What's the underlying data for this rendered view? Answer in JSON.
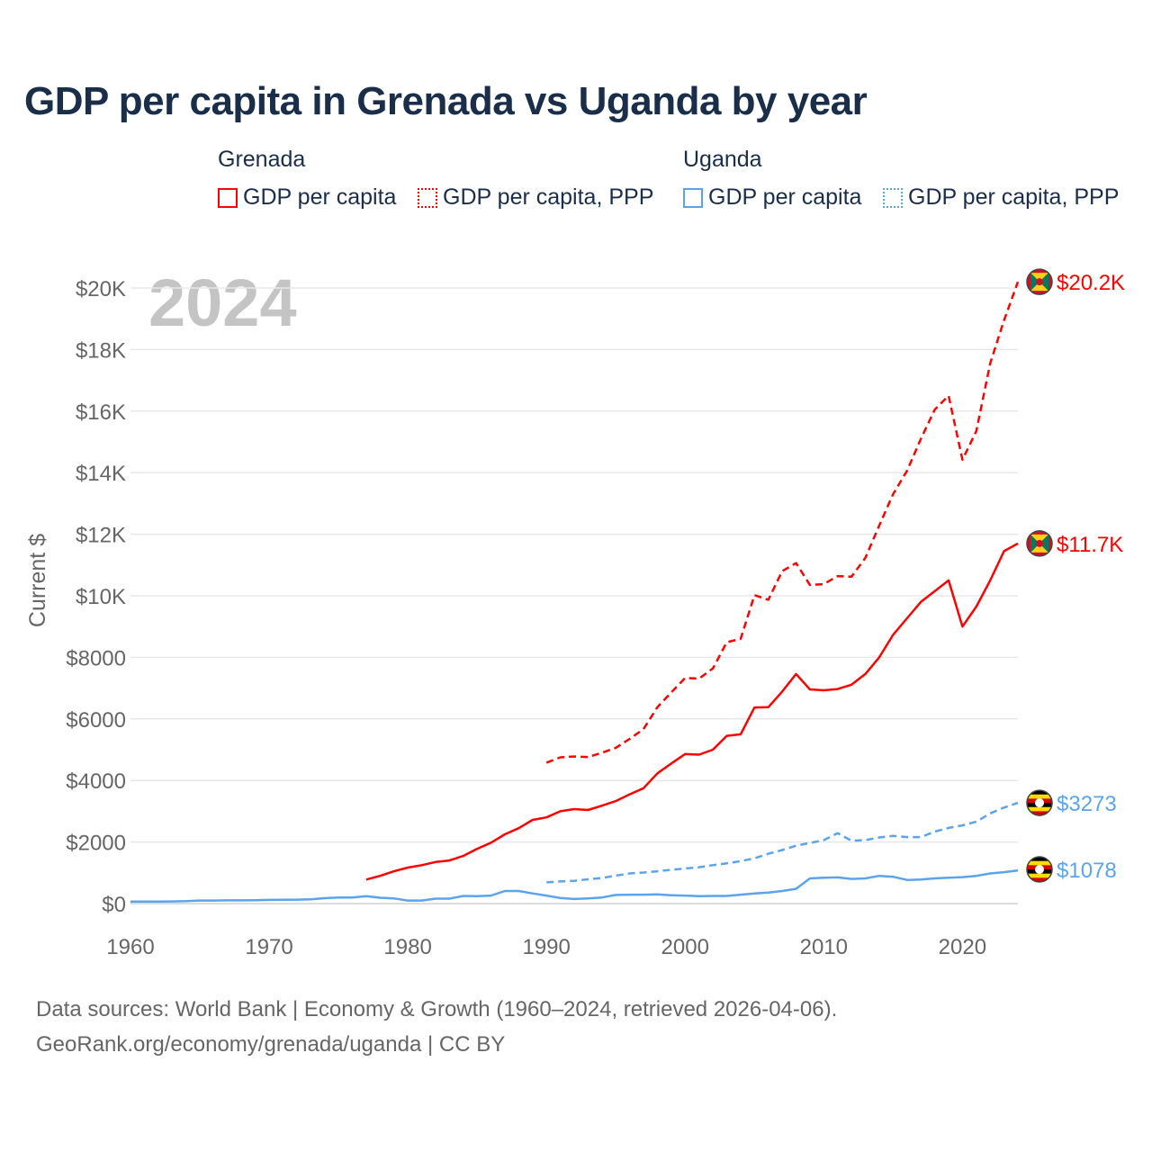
{
  "title": "GDP per capita in Grenada vs Uganda by year",
  "legend": {
    "groups": [
      {
        "name": "Grenada",
        "items": [
          "GDP per capita",
          "GDP per capita, PPP"
        ],
        "color": "#ff0000"
      },
      {
        "name": "Uganda",
        "items": [
          "GDP per capita",
          "GDP per capita, PPP"
        ],
        "color": "#5ba4ec"
      }
    ]
  },
  "footer": {
    "line1": "Data sources: World Bank | Economy & Growth (1960–2024, retrieved 2026-04-06).",
    "line2": "GeoRank.org/economy/grenada/uganda | CC BY"
  },
  "chart_data": {
    "type": "line",
    "title": "GDP per capita in Grenada vs Uganda by year",
    "year_label": "2024",
    "ylabel": "Current $",
    "xlabel": "",
    "xlim": [
      1960,
      2024
    ],
    "ylim": [
      0,
      20000
    ],
    "xticks": [
      1960,
      1970,
      1980,
      1990,
      2000,
      2010,
      2020
    ],
    "yticks": [
      {
        "v": 0,
        "label": "$0"
      },
      {
        "v": 2000,
        "label": "$2000"
      },
      {
        "v": 4000,
        "label": "$4000"
      },
      {
        "v": 6000,
        "label": "$6000"
      },
      {
        "v": 8000,
        "label": "$8000"
      },
      {
        "v": 10000,
        "label": "$10K"
      },
      {
        "v": 12000,
        "label": "$12K"
      },
      {
        "v": 14000,
        "label": "$14K"
      },
      {
        "v": 16000,
        "label": "$16K"
      },
      {
        "v": 18000,
        "label": "$18K"
      },
      {
        "v": 20000,
        "label": "$20K"
      }
    ],
    "grid": true,
    "series": [
      {
        "name": "Grenada GDP per capita",
        "country": "grenada",
        "color": "#ff0000",
        "dashed": false,
        "start": 1977,
        "end_label": "$11.7K",
        "values": [
          780,
          900,
          1050,
          1170,
          1250,
          1350,
          1400,
          1550,
          1780,
          1980,
          2250,
          2450,
          2720,
          2800,
          3000,
          3070,
          3040,
          3180,
          3330,
          3550,
          3750,
          4230,
          4550,
          4860,
          4840,
          5000,
          5450,
          5500,
          6370,
          6380,
          6890,
          7460,
          6960,
          6930,
          6970,
          7110,
          7460,
          8000,
          8730,
          9270,
          9800,
          10150,
          10500,
          9000,
          9650,
          10500,
          11450,
          11700
        ]
      },
      {
        "name": "Grenada GDP per capita, PPP",
        "country": "grenada",
        "color": "#ff0000",
        "dashed": true,
        "start": 1990,
        "end_label": "$20.2K",
        "values": [
          4580,
          4750,
          4780,
          4760,
          4900,
          5060,
          5350,
          5670,
          6380,
          6860,
          7330,
          7310,
          7640,
          8490,
          8600,
          10020,
          9870,
          10800,
          11060,
          10350,
          10380,
          10640,
          10620,
          11230,
          12280,
          13300,
          14060,
          15100,
          16050,
          16500,
          14420,
          15350,
          17550,
          18950,
          20200
        ]
      },
      {
        "name": "Uganda GDP per capita",
        "country": "uganda",
        "color": "#5ba4ec",
        "dashed": false,
        "start": 1960,
        "end_label": "$1078",
        "values": [
          65,
          65,
          65,
          70,
          80,
          100,
          100,
          105,
          105,
          110,
          120,
          125,
          130,
          140,
          175,
          200,
          200,
          240,
          190,
          170,
          100,
          100,
          160,
          160,
          250,
          240,
          260,
          410,
          410,
          330,
          260,
          180,
          150,
          170,
          200,
          280,
          290,
          290,
          300,
          270,
          260,
          240,
          250,
          250,
          290,
          330,
          360,
          410,
          480,
          820,
          840,
          850,
          800,
          820,
          900,
          870,
          770,
          780,
          820,
          840,
          860,
          900,
          980,
          1020,
          1078
        ]
      },
      {
        "name": "Uganda GDP per capita, PPP",
        "country": "uganda",
        "color": "#5ba4ec",
        "dashed": true,
        "start": 1990,
        "end_label": "$3273",
        "values": [
          690,
          720,
          740,
          790,
          830,
          910,
          980,
          1010,
          1050,
          1100,
          1140,
          1180,
          1250,
          1310,
          1380,
          1470,
          1620,
          1740,
          1880,
          1970,
          2060,
          2290,
          2040,
          2060,
          2150,
          2200,
          2160,
          2160,
          2340,
          2460,
          2540,
          2660,
          2930,
          3120,
          3273
        ]
      }
    ]
  }
}
